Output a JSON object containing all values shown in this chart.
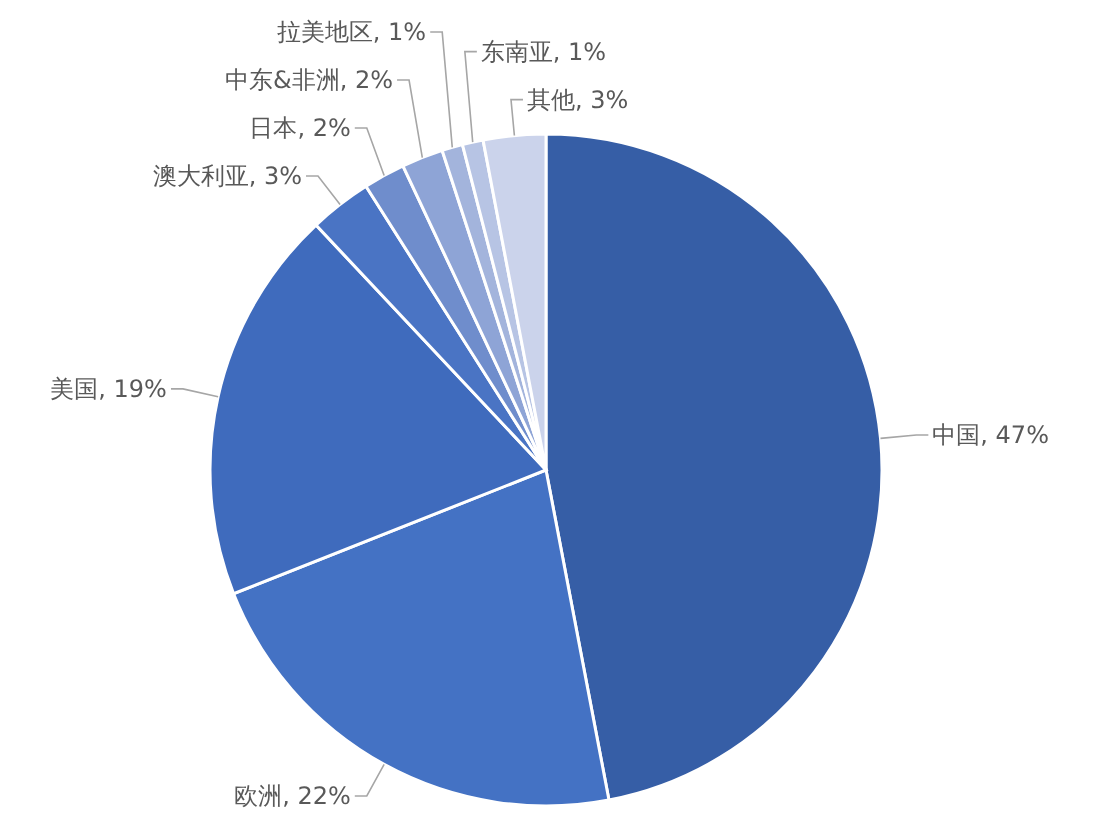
{
  "chart_data": {
    "type": "pie",
    "categories": [
      "中国",
      "欧洲",
      "美国",
      "澳大利亚",
      "日本",
      "中东&非洲",
      "拉美地区",
      "东南亚",
      "其他"
    ],
    "values": [
      47,
      22,
      19,
      3,
      2,
      2,
      1,
      1,
      3
    ],
    "colors": [
      "#365ea6",
      "#4472c4",
      "#3f6bbd",
      "#4a74c4",
      "#6f8dcc",
      "#8ea4d6",
      "#a3b4dc",
      "#b7c4e4",
      "#cbd3eb"
    ],
    "value_labels": [
      "47%",
      "22%",
      "19%",
      "3%",
      "2%",
      "2%",
      "1%",
      "1%",
      "3%"
    ]
  }
}
